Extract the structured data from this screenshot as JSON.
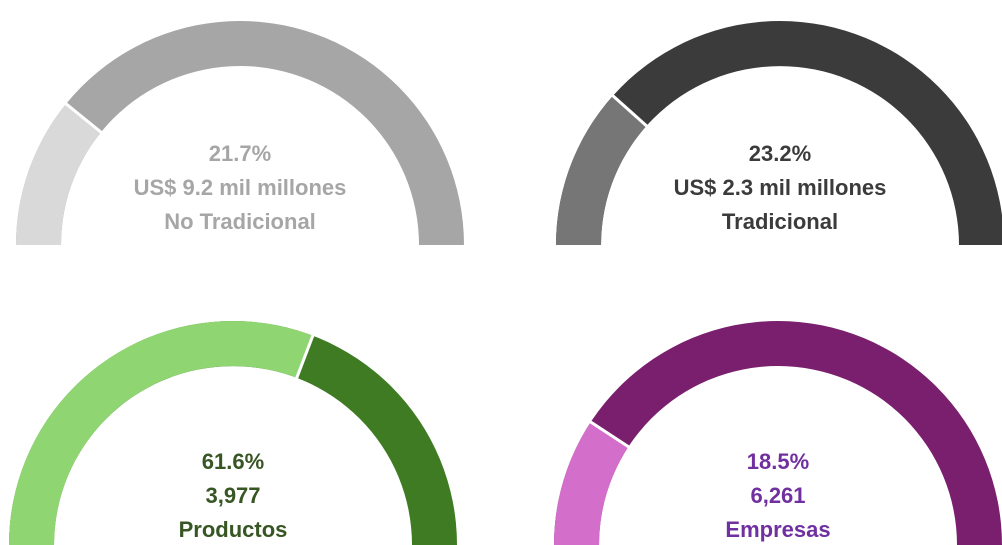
{
  "chart_data": [
    {
      "type": "gauge",
      "values": [
        21.7
      ],
      "value_labels": [
        "21.7%"
      ],
      "subtitle": "US$ 9.2 mil millones",
      "label": "No Tradicional",
      "ylim": [
        0,
        100
      ],
      "colors": [
        "#d9d9d9",
        "#a6a6a6"
      ],
      "text_color": "#a6a6a6"
    },
    {
      "type": "gauge",
      "values": [
        23.2
      ],
      "value_labels": [
        "23.2%"
      ],
      "subtitle": "US$ 2.3 mil millones",
      "label": "Tradicional",
      "ylim": [
        0,
        100
      ],
      "colors": [
        "#767676",
        "#3b3b3b"
      ],
      "text_color": "#3b3b3b"
    },
    {
      "type": "gauge",
      "values": [
        61.6
      ],
      "value_labels": [
        "61.6%"
      ],
      "subtitle": "3,977",
      "label": "Productos",
      "ylim": [
        0,
        100
      ],
      "colors": [
        "#8fd672",
        "#3e7b23"
      ],
      "text_color": "#375623"
    },
    {
      "type": "gauge",
      "values": [
        18.5
      ],
      "value_labels": [
        "18.5%"
      ],
      "subtitle": "6,261",
      "label": "Empresas",
      "ylim": [
        0,
        100
      ],
      "colors": [
        "#d46ecb",
        "#7a1f6e"
      ],
      "text_color": "#7030a0"
    }
  ]
}
